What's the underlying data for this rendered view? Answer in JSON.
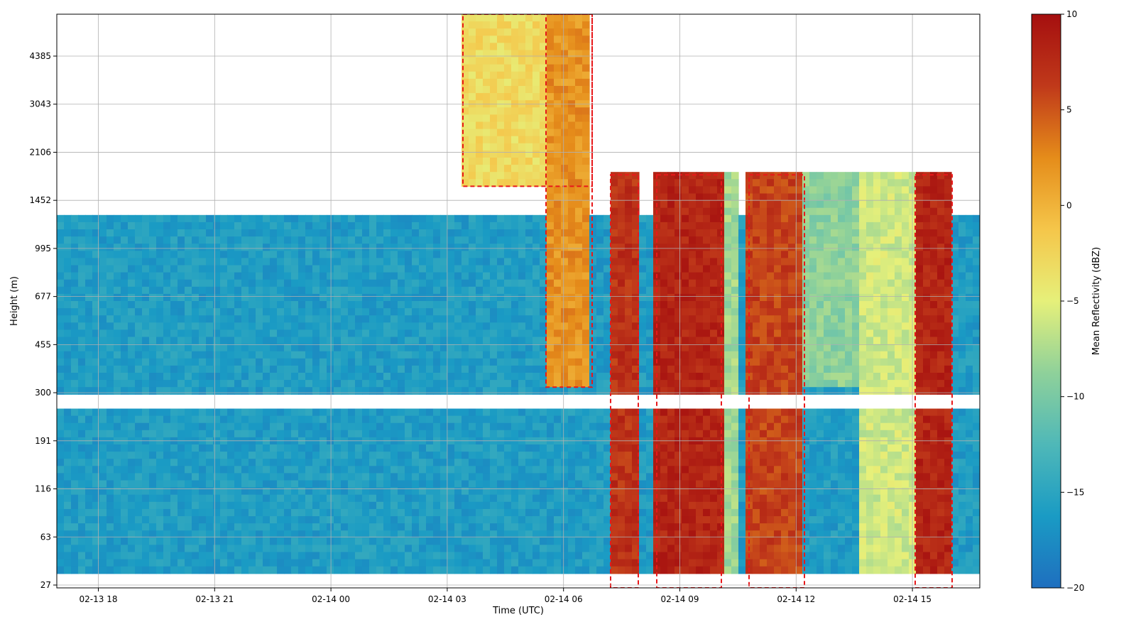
{
  "chart_data": {
    "type": "heatmap",
    "title": "",
    "xlabel": "Time (UTC)",
    "ylabel": "Height (m)",
    "colorbar_label": "Mean Reflectivity (dBZ)",
    "x_ticks": [
      "02-13 18",
      "02-13 21",
      "02-14 00",
      "02-14 03",
      "02-14 06",
      "02-14 09",
      "02-14 12",
      "02-14 15"
    ],
    "y_ticks": [
      "27",
      "63",
      "116",
      "191",
      "300",
      "455",
      "677",
      "995",
      "1452",
      "2106",
      "3043",
      "4385"
    ],
    "colorbar_ticks": [
      -20,
      -15,
      -10,
      -5,
      0,
      5,
      10
    ],
    "clim": [
      -20,
      10
    ],
    "y_scale": "log",
    "grid": true,
    "contour_style": "red dashed",
    "colormap": [
      "#1f6fbf",
      "#1a9bc4",
      "#4fb8b8",
      "#8fd19a",
      "#e6f07a",
      "#f5c64a",
      "#e58c1a",
      "#c0391a",
      "#a50f0f"
    ],
    "regions": [
      {
        "t0": 0.0,
        "t1": 1.0,
        "h0": 0.0,
        "h1": 0.65,
        "dbz": -16
      },
      {
        "t0": 0.44,
        "t1": 0.58,
        "h0": 0.7,
        "h1": 1.0,
        "dbz": -3
      },
      {
        "t0": 0.53,
        "t1": 0.58,
        "h0": 0.35,
        "h1": 1.0,
        "dbz": 2
      },
      {
        "t0": 0.6,
        "t1": 0.63,
        "h0": 0.0,
        "h1": 0.72,
        "dbz": 7
      },
      {
        "t0": 0.65,
        "t1": 0.72,
        "h0": 0.0,
        "h1": 0.72,
        "dbz": 8
      },
      {
        "t0": 0.72,
        "t1": 0.74,
        "h0": 0.0,
        "h1": 0.72,
        "dbz": -8
      },
      {
        "t0": 0.75,
        "t1": 0.81,
        "h0": 0.0,
        "h1": 0.72,
        "dbz": 6
      },
      {
        "t0": 0.81,
        "t1": 0.87,
        "h0": 0.35,
        "h1": 0.72,
        "dbz": -9
      },
      {
        "t0": 0.87,
        "t1": 0.93,
        "h0": 0.0,
        "h1": 0.72,
        "dbz": -6
      },
      {
        "t0": 0.93,
        "t1": 0.97,
        "h0": 0.0,
        "h1": 0.72,
        "dbz": 8
      }
    ]
  }
}
